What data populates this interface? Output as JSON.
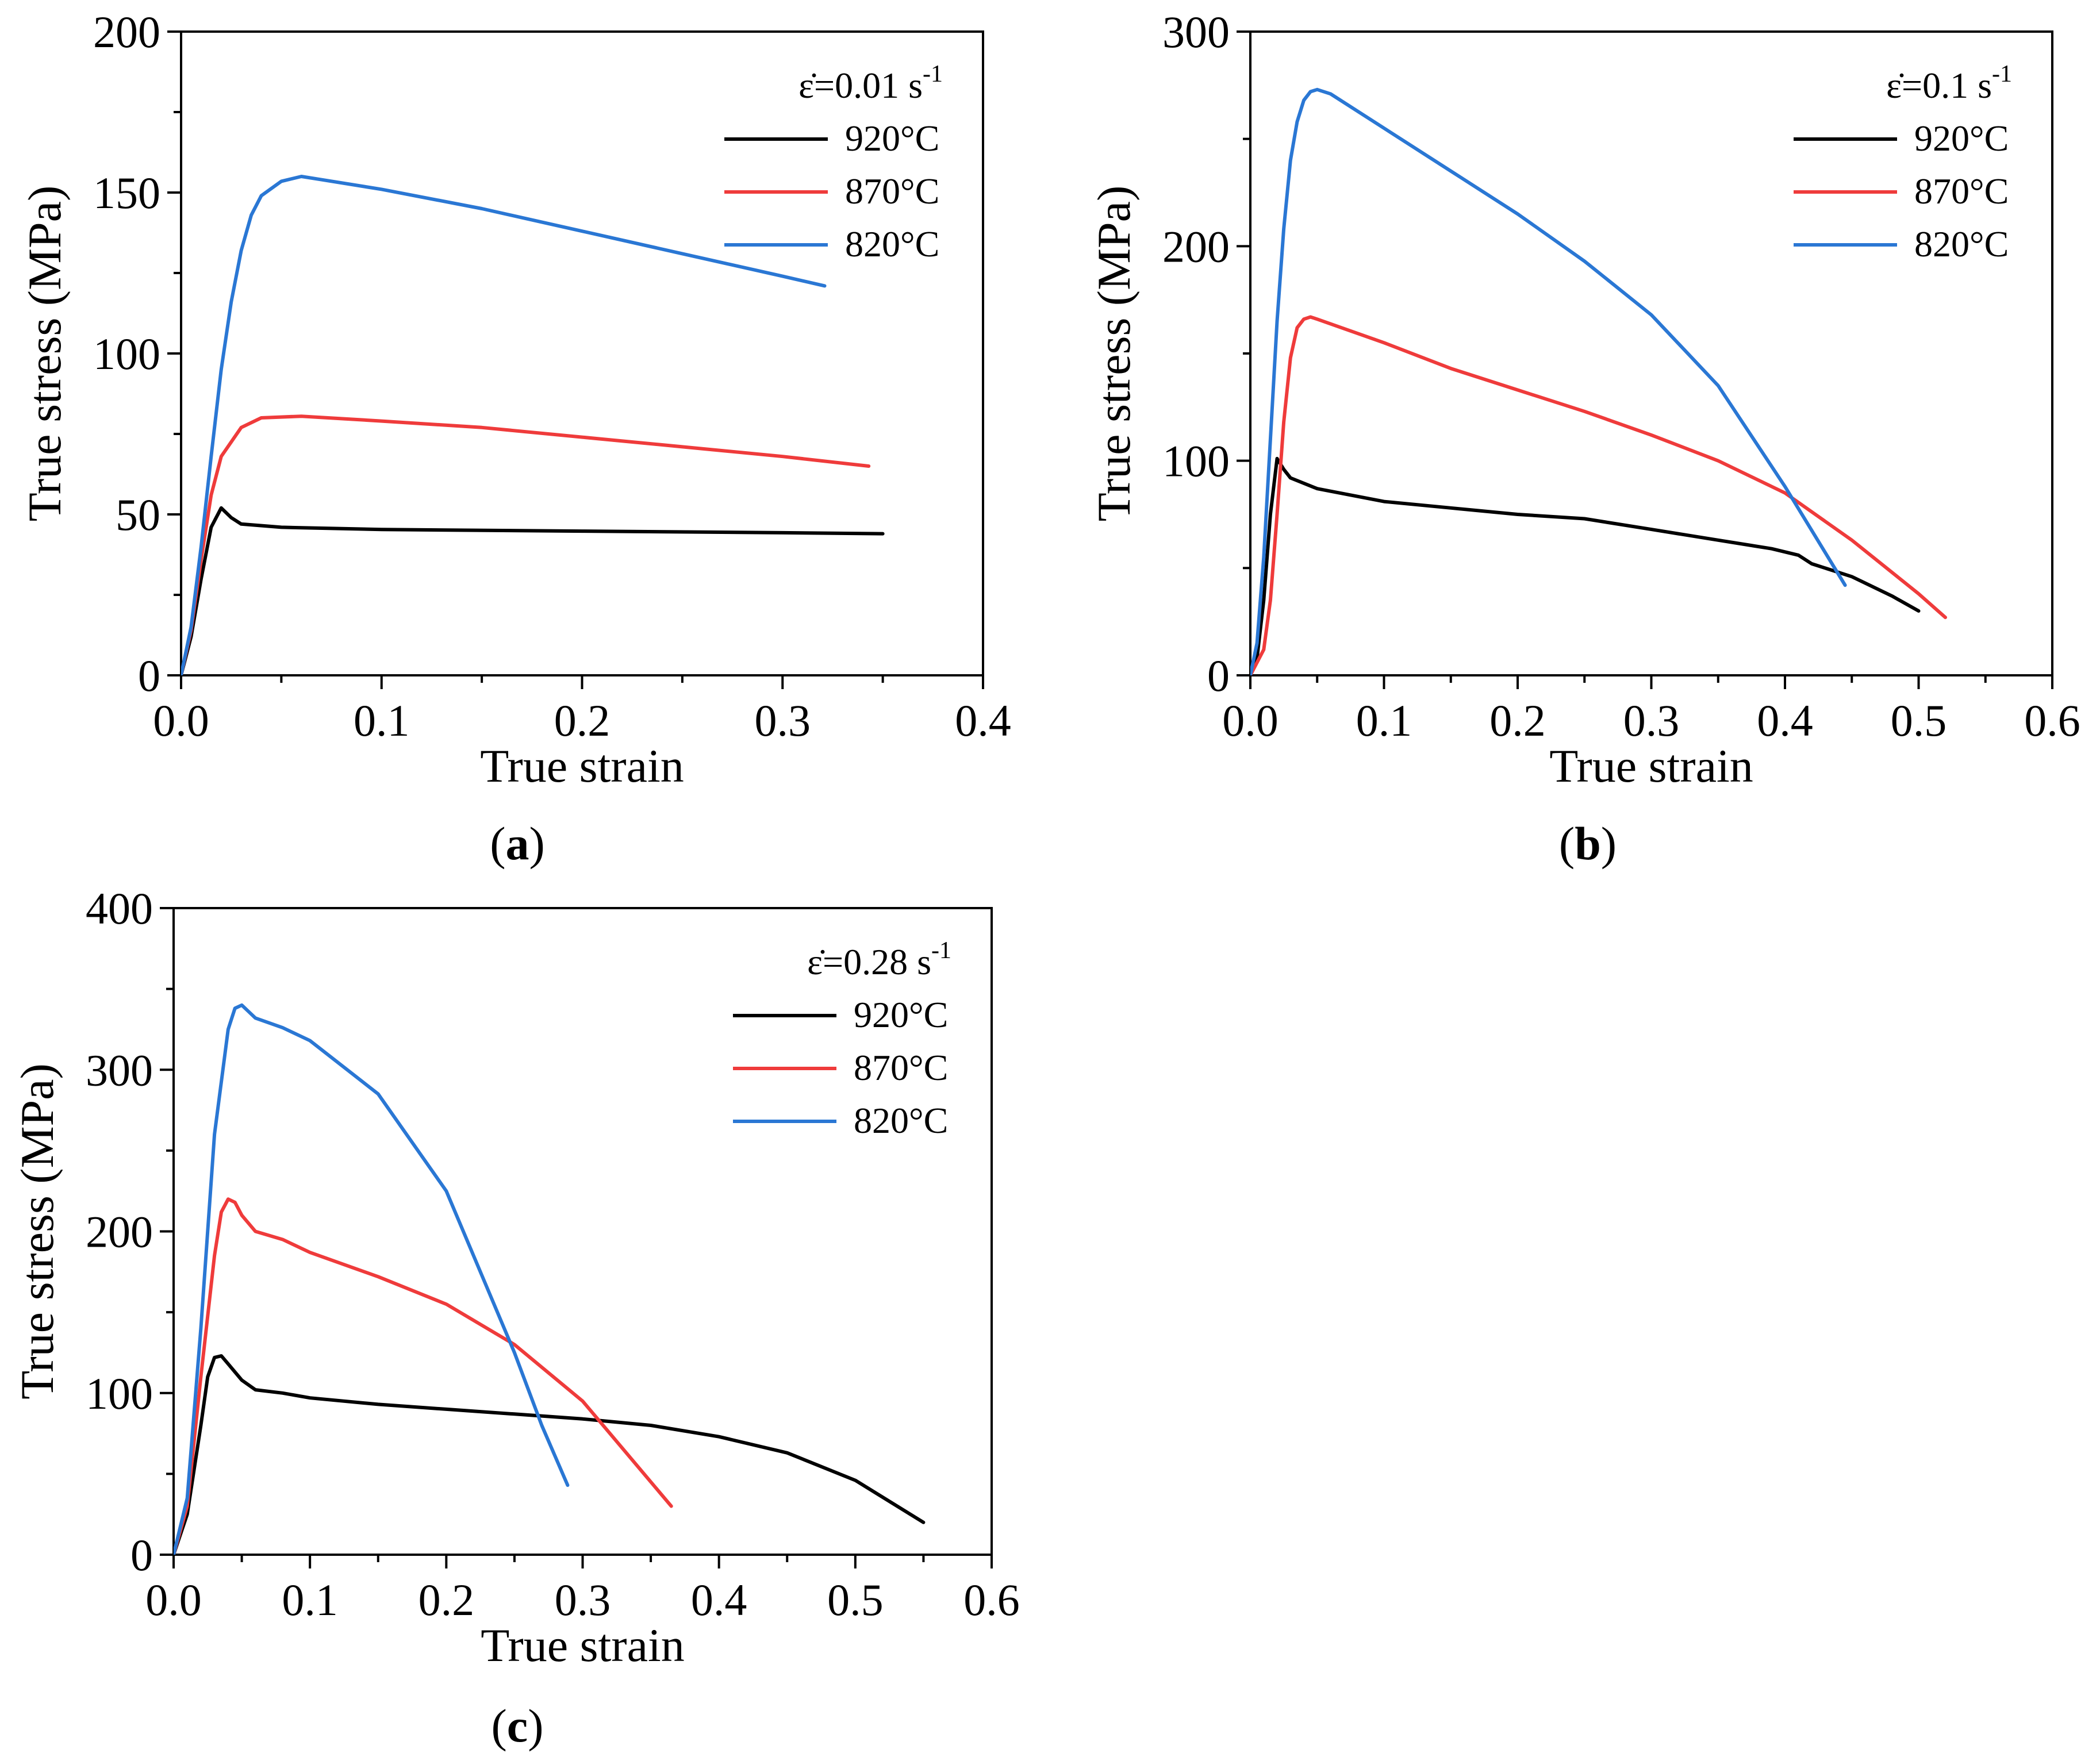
{
  "chart_data": [
    {
      "type": "line",
      "panel_label": "a",
      "xlabel": "True strain",
      "ylabel": "True stress (MPa)",
      "xlim": [
        0.0,
        0.4
      ],
      "ylim": [
        0,
        200
      ],
      "xticks": [
        0.0,
        0.1,
        0.2,
        0.3,
        0.4
      ],
      "xtick_labels": [
        "0.0",
        "0.1",
        "0.2",
        "0.3",
        "0.4"
      ],
      "yticks": [
        0,
        50,
        100,
        150,
        200
      ],
      "ytick_labels": [
        "0",
        "50",
        "100",
        "150",
        "200"
      ],
      "legend_title": {
        "symbol": "ε̇",
        "rate": "=0.01 s",
        "exp": "-1"
      },
      "legend_position": "top-right",
      "series": [
        {
          "name": "920°C",
          "color": "#000000",
          "x": [
            0,
            0.005,
            0.01,
            0.015,
            0.02,
            0.025,
            0.03,
            0.05,
            0.1,
            0.2,
            0.3,
            0.35
          ],
          "y": [
            0,
            12,
            30,
            46,
            52,
            49,
            47,
            46,
            45.3,
            44.8,
            44.3,
            44
          ]
        },
        {
          "name": "870°C",
          "color": "#ef3b3b",
          "x": [
            0,
            0.005,
            0.01,
            0.015,
            0.02,
            0.03,
            0.04,
            0.06,
            0.1,
            0.15,
            0.2,
            0.25,
            0.3,
            0.343
          ],
          "y": [
            0,
            14,
            36,
            56,
            68,
            77,
            80,
            80.5,
            79,
            77,
            74,
            71,
            68,
            65
          ]
        },
        {
          "name": "820°C",
          "color": "#2a77d4",
          "x": [
            0,
            0.005,
            0.01,
            0.015,
            0.02,
            0.025,
            0.03,
            0.035,
            0.04,
            0.05,
            0.06,
            0.07,
            0.1,
            0.15,
            0.2,
            0.25,
            0.3,
            0.321
          ],
          "y": [
            0,
            15,
            40,
            68,
            95,
            116,
            132,
            143,
            149,
            153.5,
            155,
            154,
            151,
            145,
            138,
            131,
            124,
            121
          ]
        }
      ]
    },
    {
      "type": "line",
      "panel_label": "b",
      "xlabel": "True strain",
      "ylabel": "True stress (MPa)",
      "xlim": [
        0.0,
        0.6
      ],
      "ylim": [
        0,
        300
      ],
      "xticks": [
        0.0,
        0.1,
        0.2,
        0.3,
        0.4,
        0.5,
        0.6
      ],
      "xtick_labels": [
        "0.0",
        "0.1",
        "0.2",
        "0.3",
        "0.4",
        "0.5",
        "0.6"
      ],
      "yticks": [
        0,
        100,
        200,
        300
      ],
      "ytick_labels": [
        "0",
        "100",
        "200",
        "300"
      ],
      "legend_title": {
        "symbol": "ε̇",
        "rate": "=0.1 s",
        "exp": "-1"
      },
      "legend_position": "top-right",
      "series": [
        {
          "name": "920°C",
          "color": "#000000",
          "x": [
            0,
            0.005,
            0.01,
            0.015,
            0.02,
            0.025,
            0.03,
            0.05,
            0.1,
            0.15,
            0.2,
            0.25,
            0.3,
            0.35,
            0.39,
            0.41,
            0.42,
            0.45,
            0.48,
            0.5
          ],
          "y": [
            0,
            8,
            35,
            75,
            101,
            96,
            92,
            87,
            81,
            78,
            75,
            73,
            68,
            63,
            59,
            56,
            52,
            46,
            37,
            30
          ]
        },
        {
          "name": "870°C",
          "color": "#ef3b3b",
          "x": [
            0,
            0.01,
            0.015,
            0.02,
            0.025,
            0.03,
            0.035,
            0.04,
            0.045,
            0.05,
            0.1,
            0.15,
            0.2,
            0.25,
            0.3,
            0.35,
            0.4,
            0.45,
            0.5,
            0.52
          ],
          "y": [
            0,
            12,
            35,
            75,
            118,
            148,
            162,
            166,
            167,
            166,
            155,
            143,
            133,
            123,
            112,
            100,
            85,
            63,
            38,
            27
          ]
        },
        {
          "name": "820°C",
          "color": "#2a77d4",
          "x": [
            0,
            0.005,
            0.01,
            0.015,
            0.02,
            0.025,
            0.03,
            0.035,
            0.04,
            0.045,
            0.05,
            0.06,
            0.1,
            0.15,
            0.2,
            0.25,
            0.3,
            0.35,
            0.4,
            0.445
          ],
          "y": [
            0,
            15,
            55,
            110,
            165,
            208,
            240,
            258,
            268,
            272,
            273,
            271,
            255,
            235,
            215,
            193,
            168,
            135,
            88,
            42
          ]
        }
      ]
    },
    {
      "type": "line",
      "panel_label": "c",
      "xlabel": "True strain",
      "ylabel": "True stress (MPa)",
      "xlim": [
        0.0,
        0.6
      ],
      "ylim": [
        0,
        400
      ],
      "xticks": [
        0.0,
        0.1,
        0.2,
        0.3,
        0.4,
        0.5,
        0.6
      ],
      "xtick_labels": [
        "0.0",
        "0.1",
        "0.2",
        "0.3",
        "0.4",
        "0.5",
        "0.6"
      ],
      "yticks": [
        0,
        100,
        200,
        300,
        400
      ],
      "ytick_labels": [
        "0",
        "100",
        "200",
        "300",
        "400"
      ],
      "legend_title": {
        "symbol": "ε̇",
        "rate": "=0.28 s",
        "exp": "-1"
      },
      "legend_position": "top-right",
      "series": [
        {
          "name": "920°C",
          "color": "#000000",
          "x": [
            0,
            0.01,
            0.02,
            0.025,
            0.03,
            0.035,
            0.04,
            0.05,
            0.06,
            0.08,
            0.1,
            0.15,
            0.2,
            0.25,
            0.3,
            0.35,
            0.4,
            0.45,
            0.5,
            0.55
          ],
          "y": [
            0,
            25,
            80,
            110,
            122,
            123,
            118,
            108,
            102,
            100,
            97,
            93,
            90,
            87,
            84,
            80,
            73,
            63,
            46,
            20
          ]
        },
        {
          "name": "870°C",
          "color": "#ef3b3b",
          "x": [
            0,
            0.01,
            0.02,
            0.03,
            0.035,
            0.04,
            0.045,
            0.05,
            0.06,
            0.08,
            0.1,
            0.15,
            0.2,
            0.25,
            0.3,
            0.33,
            0.365
          ],
          "y": [
            0,
            30,
            110,
            185,
            212,
            220,
            218,
            210,
            200,
            195,
            187,
            172,
            155,
            130,
            95,
            65,
            30
          ]
        },
        {
          "name": "820°C",
          "color": "#2a77d4",
          "x": [
            0,
            0.01,
            0.02,
            0.03,
            0.04,
            0.045,
            0.05,
            0.055,
            0.06,
            0.07,
            0.08,
            0.1,
            0.15,
            0.2,
            0.25,
            0.27,
            0.289
          ],
          "y": [
            0,
            35,
            140,
            260,
            325,
            338,
            340,
            336,
            332,
            329,
            326,
            318,
            285,
            225,
            125,
            80,
            43
          ]
        }
      ]
    }
  ]
}
